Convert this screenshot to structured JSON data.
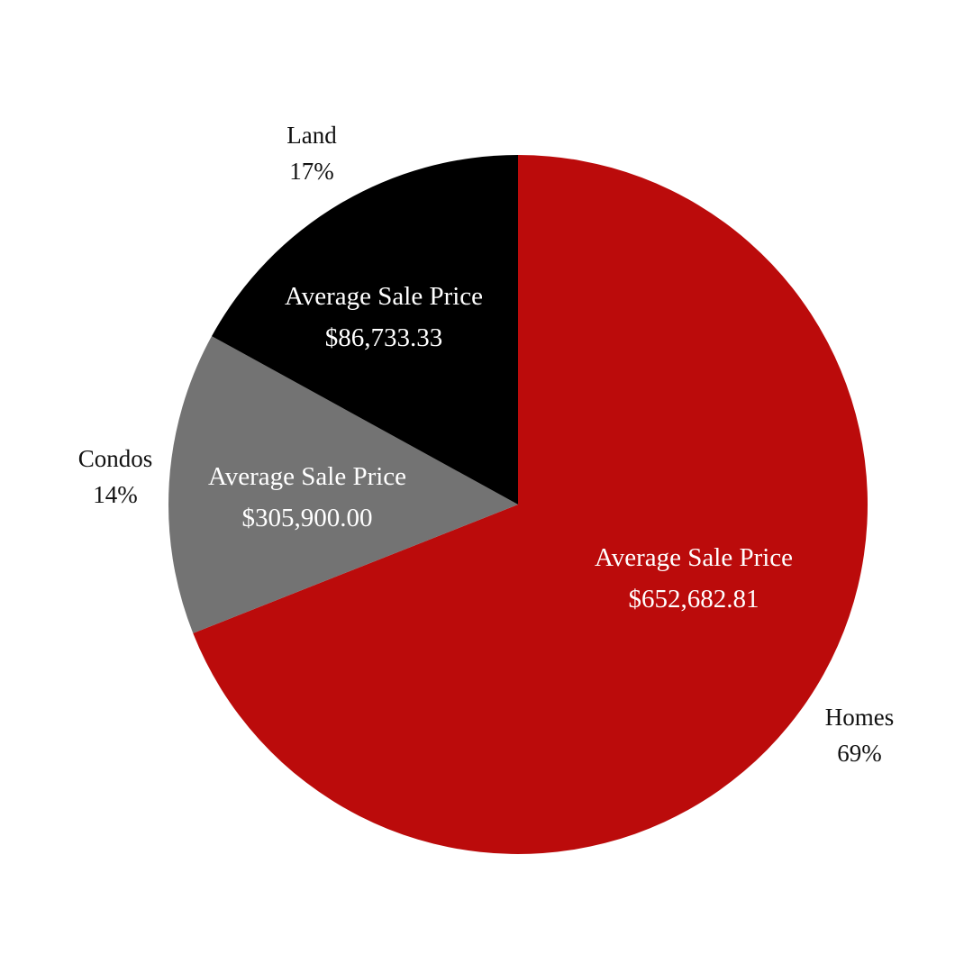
{
  "chart_data": {
    "type": "pie",
    "title": "",
    "categories": [
      "Homes",
      "Condos",
      "Land"
    ],
    "values": [
      69,
      14,
      17
    ],
    "value_labels": [
      "69%",
      "14%",
      "17%"
    ],
    "inner_labels": [
      {
        "title": "Average Sale Price",
        "value": "$652,682.81"
      },
      {
        "title": "Average Sale Price",
        "value": "$305,900.00"
      },
      {
        "title": "Average Sale Price",
        "value": "$86,733.33"
      }
    ],
    "colors": [
      "#bb0b0b",
      "#737373",
      "#000000"
    ],
    "start_angle_deg": 0,
    "direction": "clockwise",
    "legend": "none"
  },
  "labels": {
    "homes": {
      "name": "Homes",
      "pct": "69%",
      "avg_title": "Average Sale Price",
      "avg_value": "$652,682.81"
    },
    "condos": {
      "name": "Condos",
      "pct": "14%",
      "avg_title": "Average Sale Price",
      "avg_value": "$305,900.00"
    },
    "land": {
      "name": "Land",
      "pct": "17%",
      "avg_title": "Average Sale Price",
      "avg_value": "$86,733.33"
    }
  }
}
